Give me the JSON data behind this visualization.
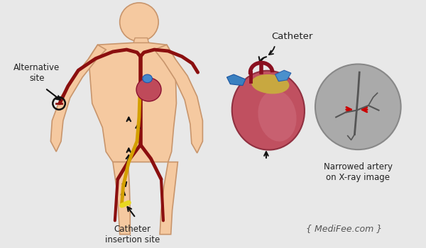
{
  "background_color": "#e8e8e8",
  "body_color": "#f5c9a0",
  "body_outline_color": "#c8956c",
  "artery_color": "#8b0f0f",
  "vein_color": "#d4a000",
  "heart_color": "#c05060",
  "xray_bg": "#aaaaaa",
  "arrow_color": "#111111",
  "red_arrow_color": "#cc0000",
  "blue1": "#3a7fbf",
  "blue2": "#5a9fd4",
  "text_color": "#222222",
  "label_alt_site": "Alternative\nsite",
  "label_catheter_insertion": "Catheter\ninsertion site",
  "label_catheter": "Catheter",
  "label_narrowed": "Narrowed artery\non X-ray image",
  "label_medifee": "{ MediFee.com }",
  "fig_width": 6.0,
  "fig_height": 3.5,
  "dpi": 100
}
